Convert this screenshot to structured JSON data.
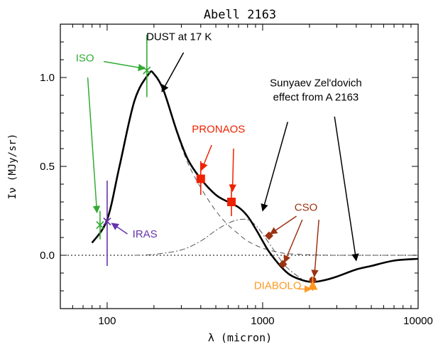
{
  "chart_data": {
    "type": "line",
    "title": "Abell 2163",
    "xlabel": "λ (micron)",
    "ylabel": "Iν (MJy/sr)",
    "xscale": "log",
    "xlim": [
      50,
      10000
    ],
    "ylim": [
      -0.3,
      1.3
    ],
    "x_ticks": [
      {
        "value": 100,
        "label": "100"
      },
      {
        "value": 1000,
        "label": "1000"
      },
      {
        "value": 10000,
        "label": "10000"
      }
    ],
    "y_ticks": [
      {
        "value": 0.0,
        "label": "0.0"
      },
      {
        "value": 0.5,
        "label": "0.5"
      },
      {
        "value": 1.0,
        "label": "1.0"
      }
    ],
    "grid": false,
    "series": [
      {
        "style": "solid-thick",
        "x": [
          80,
          100,
          120,
          150,
          185,
          200,
          230,
          280,
          330,
          400,
          500,
          600,
          700,
          800,
          900,
          1000,
          1100,
          1300,
          1500,
          1800,
          2100,
          2500,
          3000,
          4000,
          5000,
          7000,
          10000
        ],
        "y": [
          0.07,
          0.2,
          0.5,
          0.87,
          1.02,
          1.02,
          0.93,
          0.7,
          0.54,
          0.43,
          0.34,
          0.3,
          0.27,
          0.22,
          0.15,
          0.08,
          0.02,
          -0.06,
          -0.11,
          -0.14,
          -0.15,
          -0.14,
          -0.12,
          -0.08,
          -0.06,
          -0.03,
          -0.02
        ]
      },
      {
        "style": "dashed",
        "x": [
          80,
          100,
          120,
          150,
          185,
          200,
          230,
          280,
          330,
          400,
          500,
          600,
          700,
          800,
          1000,
          1300,
          1500,
          2000,
          2500,
          3000,
          4000,
          5000,
          7000,
          10000
        ],
        "y": [
          0.07,
          0.2,
          0.5,
          0.87,
          1.02,
          1.02,
          0.93,
          0.69,
          0.52,
          0.38,
          0.25,
          0.17,
          0.12,
          0.08,
          0.04,
          0.015,
          0.008,
          0.003,
          0.001,
          0,
          0,
          0,
          0,
          0
        ]
      },
      {
        "style": "dash-dot",
        "x": [
          150,
          200,
          300,
          400,
          500,
          600,
          700,
          800,
          900,
          1000,
          1200,
          1400,
          1700,
          2000,
          2500,
          3000,
          4000,
          5000,
          7000,
          10000
        ],
        "y": [
          0,
          0.005,
          0.03,
          0.08,
          0.14,
          0.18,
          0.2,
          0.2,
          0.17,
          0.12,
          0.02,
          -0.06,
          -0.12,
          -0.15,
          -0.14,
          -0.12,
          -0.08,
          -0.06,
          -0.03,
          -0.02
        ]
      }
    ],
    "data_points": [
      {
        "instrument": "ISO",
        "x": 90,
        "y": 0.17,
        "yerr_low": 0.09,
        "yerr_high": 0.25,
        "marker": "x",
        "color": "#33aa33"
      },
      {
        "instrument": "ISO",
        "x": 180,
        "y": 1.04,
        "yerr_low": 0.89,
        "yerr_high": 1.24,
        "marker": "x",
        "color": "#33aa33"
      },
      {
        "instrument": "IRAS",
        "x": 100,
        "y": 0.19,
        "yerr_low": -0.06,
        "yerr_high": 0.42,
        "marker": "x",
        "color": "#6633aa"
      },
      {
        "instrument": "PRONAOS",
        "x": 400,
        "y": 0.43,
        "yerr_low": 0.34,
        "yerr_high": 0.53,
        "marker": "square",
        "color": "#ee2200"
      },
      {
        "instrument": "PRONAOS",
        "x": 630,
        "y": 0.3,
        "yerr_low": 0.22,
        "yerr_high": 0.4,
        "marker": "square",
        "color": "#ee2200"
      },
      {
        "instrument": "CSO",
        "x": 1100,
        "y": 0.11,
        "marker": "diamond",
        "color": "#993311"
      },
      {
        "instrument": "CSO",
        "x": 1350,
        "y": -0.05,
        "marker": "diamond",
        "color": "#993311"
      },
      {
        "instrument": "CSO",
        "x": 2100,
        "y": -0.14,
        "marker": "circle",
        "color": "#993311"
      },
      {
        "instrument": "DIABOLO",
        "x": 2100,
        "y": -0.17,
        "yerr_low": -0.2,
        "yerr_high": -0.12,
        "marker": "triangle",
        "color": "#ff9922"
      }
    ],
    "annotations": [
      {
        "text": "DUST at 17 K",
        "color": "#000000",
        "text_x": 290,
        "text_y": 1.21,
        "arrows": [
          [
            310,
            1.14,
            225,
            0.92
          ]
        ]
      },
      {
        "text": "ISO",
        "color": "#33aa33",
        "text_x": 72,
        "text_y": 1.09,
        "arrows": [
          [
            95,
            1.09,
            175,
            1.05
          ],
          [
            75,
            1.0,
            86,
            0.24
          ]
        ]
      },
      {
        "text": "IRAS",
        "color": "#6633aa",
        "text_x": 175,
        "text_y": 0.1,
        "arrows": [
          [
            135,
            0.12,
            107,
            0.18
          ]
        ]
      },
      {
        "text": "PRONAOS",
        "color": "#ee2200",
        "text_x": 520,
        "text_y": 0.69,
        "arrows": [
          [
            470,
            0.62,
            405,
            0.48
          ],
          [
            650,
            0.6,
            640,
            0.36
          ]
        ]
      },
      {
        "text": "CSO",
        "color": "#993311",
        "text_x": 1900,
        "text_y": 0.25,
        "arrows": [
          [
            1650,
            0.22,
            1120,
            0.12
          ],
          [
            1800,
            0.2,
            1380,
            -0.04
          ],
          [
            2300,
            0.2,
            2150,
            -0.12
          ]
        ]
      },
      {
        "text": "DIABOLO",
        "color": "#ff9922",
        "text_x": 1250,
        "text_y": -0.19,
        "arrows": [
          [
            1700,
            -0.19,
            2050,
            -0.19
          ]
        ]
      },
      {
        "lines": [
          "Sunyaev Zel'dovich",
          "effect from A 2163"
        ],
        "color": "#000000",
        "text_x": 2200,
        "text_y": 0.95,
        "arrows": [
          [
            1450,
            0.75,
            1000,
            0.25
          ],
          [
            2900,
            0.78,
            4000,
            -0.03
          ]
        ]
      }
    ]
  }
}
